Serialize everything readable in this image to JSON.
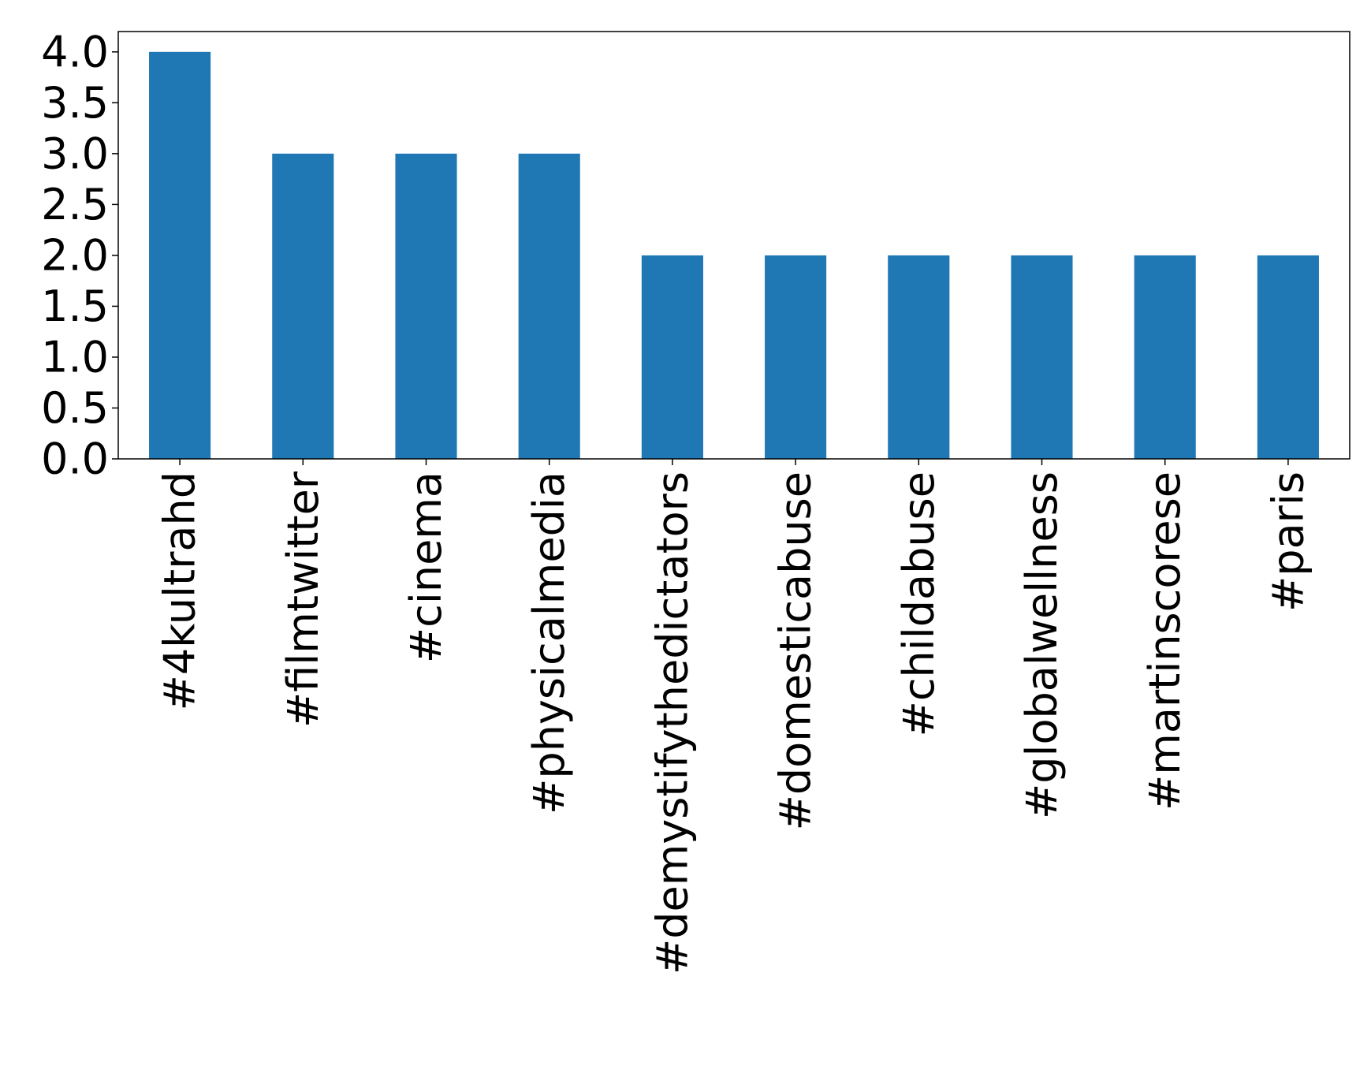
{
  "chart_data": {
    "type": "bar",
    "categories": [
      "#4kultrahd",
      "#filmtwitter",
      "#cinema",
      "#physicalmedia",
      "#demystifythedictators",
      "#domesticabuse",
      "#childabuse",
      "#globalwellness",
      "#martinscorese",
      "#paris"
    ],
    "values": [
      4,
      3,
      3,
      3,
      2,
      2,
      2,
      2,
      2,
      2
    ],
    "color": "#1f77b4",
    "ylim": [
      0,
      4.2
    ],
    "yticks": [
      {
        "value": 0,
        "label": "0.0"
      },
      {
        "value": 0.5,
        "label": "0.5"
      },
      {
        "value": 1,
        "label": "1.0"
      },
      {
        "value": 1.5,
        "label": "1.5"
      },
      {
        "value": 2,
        "label": "2.0"
      },
      {
        "value": 2.5,
        "label": "2.5"
      },
      {
        "value": 3,
        "label": "3.0"
      },
      {
        "value": 3.5,
        "label": "3.5"
      },
      {
        "value": 4,
        "label": "4.0"
      }
    ],
    "grid": false
  }
}
